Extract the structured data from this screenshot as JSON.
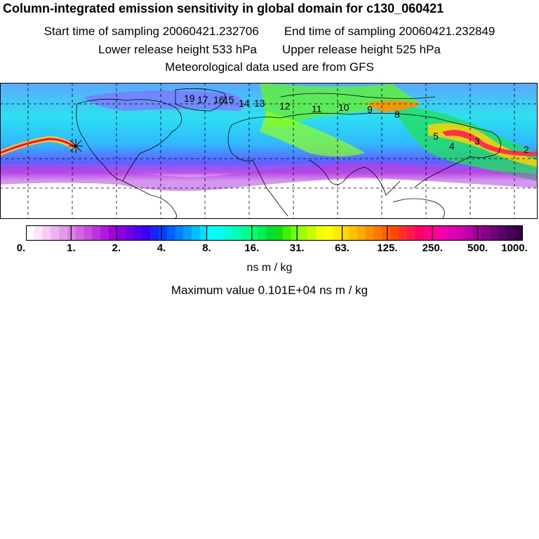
{
  "title": "Column-integrated emission sensitivity in global domain for c130_060421",
  "sampling": {
    "start": "Start time of sampling 20060421.232706",
    "end": "End time of sampling 20060421.232849"
  },
  "release": {
    "lower": "Lower release height  533 hPa",
    "upper": "Upper release height  525 hPa"
  },
  "met_note": "Meteorological data used are from GFS",
  "colorbar": {
    "ticks": [
      "0.",
      "1.",
      "2.",
      "4.",
      "8.",
      "16.",
      "31.",
      "63.",
      "125.",
      "250.",
      "500.",
      "1000."
    ],
    "colors": [
      "#ffffff",
      "#fbe6fb",
      "#f5ccf5",
      "#eeb2f0",
      "#e699ea",
      "#dd80e6",
      "#d366e3",
      "#c94de0",
      "#bd33dd",
      "#b01adc",
      "#a300da",
      "#8a00e0",
      "#7000e6",
      "#5500ec",
      "#3a00f2",
      "#2020f8",
      "#0040ff",
      "#0060ff",
      "#0080ff",
      "#00a0ff",
      "#00c0ff",
      "#00e0ff",
      "#00ffff",
      "#00fff0",
      "#00ffd0",
      "#00ffb0",
      "#00ff90",
      "#00ff70",
      "#00f050",
      "#00e030",
      "#10e010",
      "#40f000",
      "#70ff00",
      "#a0ff00",
      "#c8ff00",
      "#f0ff00",
      "#ffff00",
      "#ffee00",
      "#ffd800",
      "#ffc000",
      "#ffaa00",
      "#ff9000",
      "#ff7800",
      "#ff6000",
      "#ff4800",
      "#ff3030",
      "#ff1a4a",
      "#ff0066",
      "#ff0088",
      "#ff00a0",
      "#f000b0",
      "#e000b8",
      "#cc00b0",
      "#b800a5",
      "#a0009a",
      "#88008c",
      "#70007c",
      "#5a006c",
      "#480058",
      "#380046"
    ],
    "unit": "ns m / kg"
  },
  "maximum": "Maximum value  0.101E+04 ns m / kg",
  "map": {
    "day_labels": [
      "19",
      "17",
      "16",
      "15",
      "14",
      "13",
      "12",
      "11",
      "10",
      "9",
      "8",
      "5",
      "4",
      "3",
      "2"
    ],
    "grid_lon_step_deg": 30,
    "grid_lat_lines_deg": [
      30,
      60
    ]
  }
}
